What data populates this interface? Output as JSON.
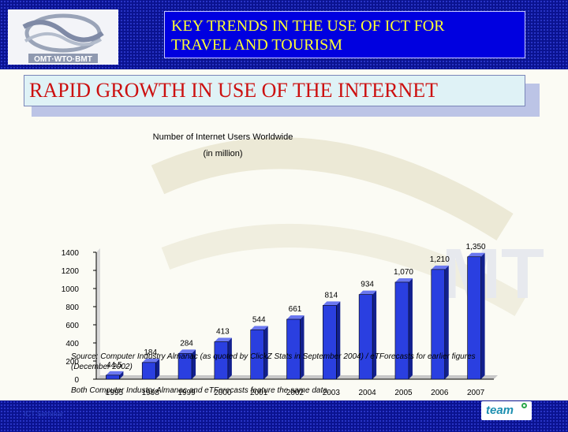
{
  "header": {
    "title_line1": "KEY TRENDS IN THE USE OF ICT FOR",
    "title_line2": "TRAVEL AND TOURISM"
  },
  "logo": {
    "text": "OMT·WTO·BMT"
  },
  "banner": {
    "text": "RAPID GROWTH IN USE OF THE INTERNET"
  },
  "chart_data": {
    "type": "bar",
    "title": "Number of Internet Users Worldwide",
    "subtitle": "(in million)",
    "categories": [
      "1995",
      "1998",
      "1999",
      "2000",
      "2001",
      "2002",
      "2003",
      "2004",
      "2005",
      "2006",
      "2007"
    ],
    "values": [
      44.5,
      184,
      284,
      413,
      544,
      661,
      814,
      934,
      1070,
      1210,
      1350
    ],
    "value_labels": [
      "44.5",
      "184",
      "284",
      "413",
      "544",
      "661",
      "814",
      "934",
      "1,070",
      "1,210",
      "1,350"
    ],
    "yticks": [
      "0",
      "200",
      "400",
      "600",
      "800",
      "1000",
      "1200",
      "1400"
    ],
    "ylim": [
      0,
      1400
    ],
    "xlabel": "",
    "ylabel": "",
    "grid": false,
    "bar_color": "#2a3fe0"
  },
  "notes": {
    "source": "Source: Computer Industry Almanac (as quoted by ClickZ Stats in September 2004) / eTForecasts for earlier figures (December 2002)",
    "both": "Both Computer Industry Almanac and eTForecasts feature the same data."
  },
  "footer": {
    "left_text": "ICT Seminar",
    "team_logo": "team"
  }
}
